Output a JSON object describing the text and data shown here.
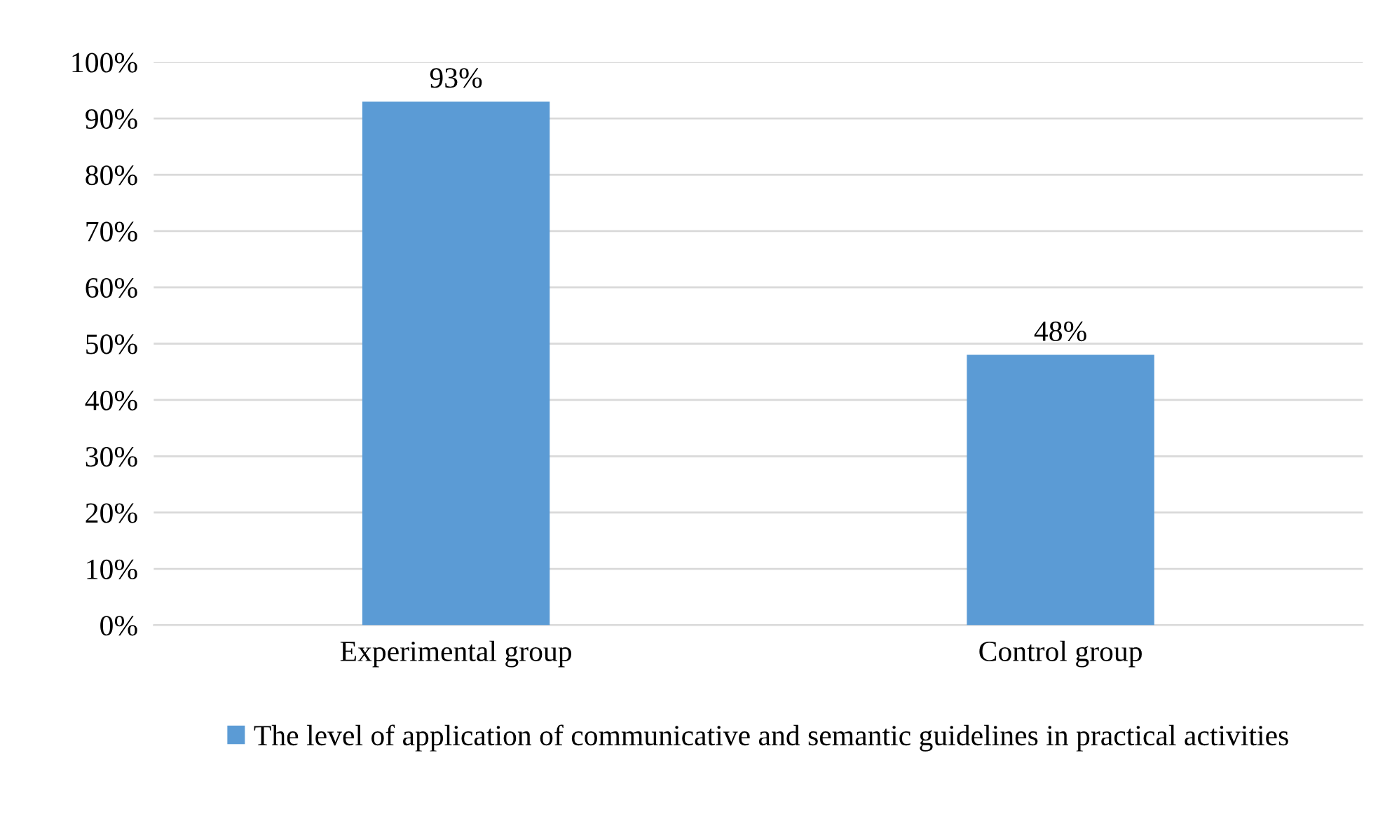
{
  "chart_data": {
    "type": "bar",
    "categories": [
      "Experimental group",
      "Control group"
    ],
    "series": [
      {
        "name": "The level of application of communicative and semantic guidelines in practical activities",
        "color": "#5b9bd5",
        "values": [
          93,
          48
        ],
        "value_labels": [
          "93%",
          "48%"
        ]
      }
    ],
    "ylim": [
      0,
      100
    ],
    "yticks": [
      {
        "value": 0,
        "label": "0%"
      },
      {
        "value": 10,
        "label": "10%"
      },
      {
        "value": 20,
        "label": "20%"
      },
      {
        "value": 30,
        "label": "30%"
      },
      {
        "value": 40,
        "label": "40%"
      },
      {
        "value": 50,
        "label": "50%"
      },
      {
        "value": 60,
        "label": "60%"
      },
      {
        "value": 70,
        "label": "70%"
      },
      {
        "value": 80,
        "label": "80%"
      },
      {
        "value": 90,
        "label": "90%"
      },
      {
        "value": 100,
        "label": "100%"
      }
    ],
    "grid": "y",
    "legend": "bottom"
  }
}
